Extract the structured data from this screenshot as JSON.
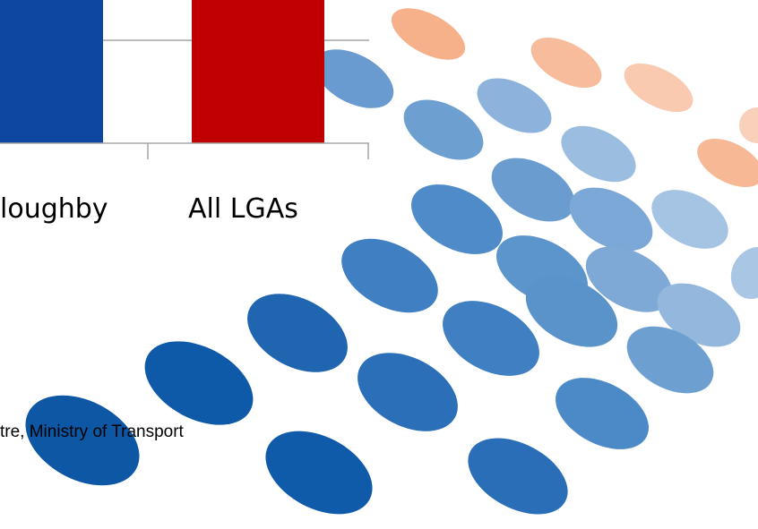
{
  "chart_fragment": {
    "categories": [
      "loughby",
      "All LGAs"
    ]
  },
  "source": "tre, Ministry of Transport"
}
